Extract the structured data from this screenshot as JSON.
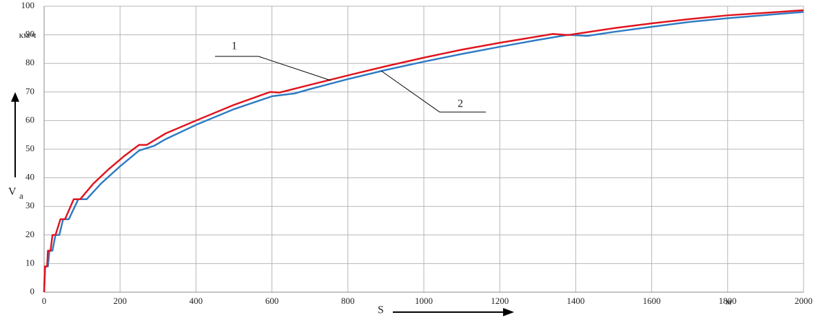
{
  "chart_data": {
    "type": "line",
    "y_unit": "км/ч",
    "y_label": "V",
    "y_label_sub": "a",
    "x_label": "S",
    "x_unit": "м",
    "xlim": [
      0,
      2000
    ],
    "ylim": [
      0,
      100
    ],
    "xticks": [
      0,
      200,
      400,
      600,
      800,
      1000,
      1200,
      1400,
      1600,
      1800,
      2000
    ],
    "yticks": [
      0,
      10,
      20,
      30,
      40,
      50,
      60,
      70,
      80,
      90,
      100
    ],
    "grid": true,
    "series": [
      {
        "name": "1",
        "color": "#e0141e",
        "x": [
          0,
          2,
          8,
          10,
          17,
          22,
          30,
          43,
          55,
          78,
          95,
          130,
          170,
          210,
          250,
          270,
          320,
          400,
          500,
          595,
          620,
          700,
          800,
          900,
          1000,
          1100,
          1200,
          1340,
          1380,
          1500,
          1600,
          1700,
          1800,
          1900,
          2000
        ],
        "values": [
          0,
          9,
          9,
          14.5,
          14.5,
          20,
          20,
          25.5,
          25.5,
          32.5,
          32.5,
          38,
          43,
          47.5,
          51.5,
          51.5,
          55.5,
          60,
          65.5,
          70,
          69.8,
          72.5,
          75.8,
          79,
          82,
          84.8,
          87.2,
          90.3,
          89.9,
          92.3,
          94,
          95.5,
          96.8,
          97.7,
          98.6
        ]
      },
      {
        "name": "2",
        "color": "#2e7bc4",
        "x": [
          0,
          3,
          10,
          14,
          22,
          30,
          40,
          50,
          65,
          90,
          112,
          150,
          200,
          250,
          290,
          320,
          400,
          500,
          600,
          660,
          700,
          800,
          900,
          1000,
          1100,
          1200,
          1300,
          1380,
          1430,
          1500,
          1600,
          1700,
          1800,
          1900,
          2000
        ],
        "values": [
          0,
          9,
          9,
          14.5,
          14.5,
          20,
          20,
          25.5,
          25.5,
          32.5,
          32.5,
          38,
          44,
          49.5,
          51.2,
          53.5,
          58.5,
          64,
          68.5,
          69.5,
          71,
          74.5,
          77.7,
          80.6,
          83.3,
          85.8,
          88.2,
          90,
          89.6,
          91,
          92.8,
          94.5,
          95.8,
          96.9,
          98
        ]
      }
    ]
  }
}
